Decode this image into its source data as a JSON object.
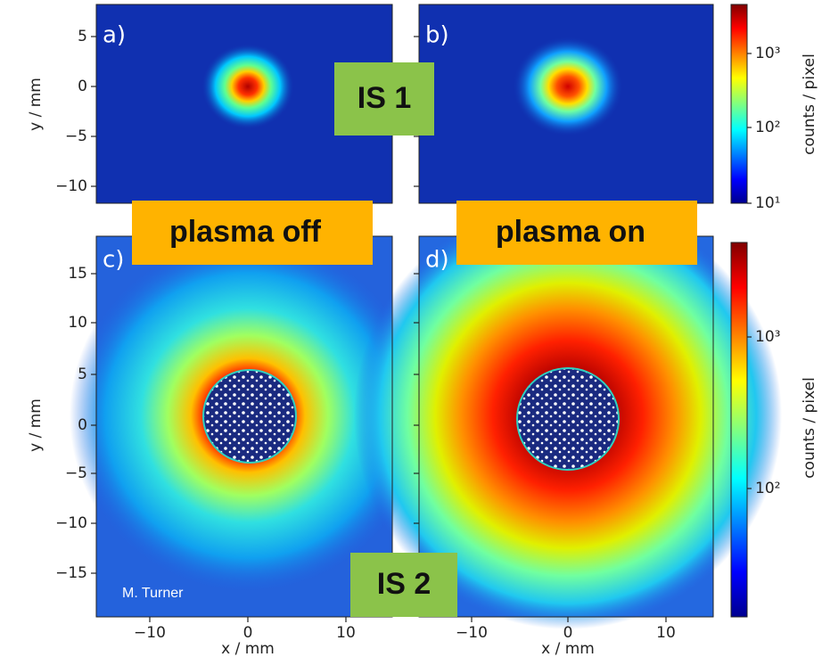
{
  "panels": [
    {
      "label": "a)"
    },
    {
      "label": "b)"
    },
    {
      "label": "c)"
    },
    {
      "label": "d)"
    }
  ],
  "top_y_axis": {
    "title": "y / mm",
    "ticks": [
      "5",
      "0",
      "−5",
      "−10"
    ]
  },
  "bottom_y_axis": {
    "title": "y / mm",
    "ticks": [
      "15",
      "10",
      "5",
      "0",
      "−5",
      "−10",
      "−15"
    ]
  },
  "x_axis": {
    "title": "x / mm",
    "ticks": [
      "−10",
      "0",
      "10"
    ]
  },
  "top_colorbar": {
    "title": "counts / pixel",
    "ticks": [
      "10³",
      "10²",
      "10¹"
    ]
  },
  "bottom_colorbar": {
    "title": "counts / pixel",
    "ticks": [
      "10³",
      "10²"
    ]
  },
  "overlays": {
    "is1": "IS 1",
    "is2": "IS 2",
    "plasma_off": "plasma off",
    "plasma_on": "plasma on",
    "credit": "M. Turner"
  }
}
